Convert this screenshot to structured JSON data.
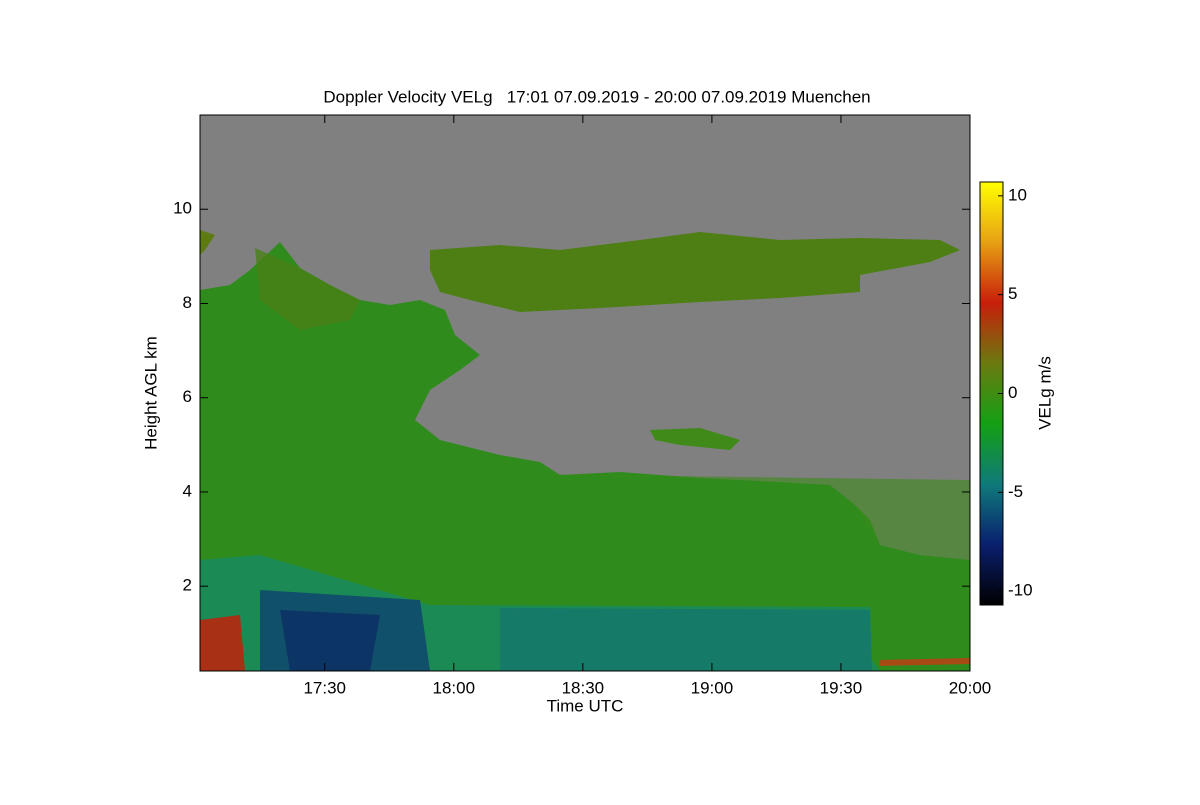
{
  "chart_data": {
    "type": "heatmap",
    "title": "Doppler Velocity VELg   17:01 07.09.2019 - 20:00 07.09.2019 Muenchen",
    "x_label": "Time UTC",
    "y_label": "Height AGL km",
    "colorbar_label": "VELg m/s",
    "xlim": [
      1021,
      1200
    ],
    "xticks": [
      {
        "value": 1050,
        "label": "17:30"
      },
      {
        "value": 1080,
        "label": "18:00"
      },
      {
        "value": 1110,
        "label": "18:30"
      },
      {
        "value": 1140,
        "label": "19:00"
      },
      {
        "value": 1170,
        "label": "19:30"
      },
      {
        "value": 1200,
        "label": "20:00"
      }
    ],
    "ylim": [
      0.2,
      12.0
    ],
    "yticks": [
      2,
      4,
      6,
      8,
      10
    ],
    "clim": [
      -10.7,
      10.7
    ],
    "cticks": [
      -10,
      -5,
      0,
      5,
      10
    ],
    "colormap": [
      "#000000",
      "#0a1f6e",
      "#0f7a7a",
      "#14a014",
      "#6b7a10",
      "#c81e0a",
      "#e6a014",
      "#ffff00"
    ]
  }
}
